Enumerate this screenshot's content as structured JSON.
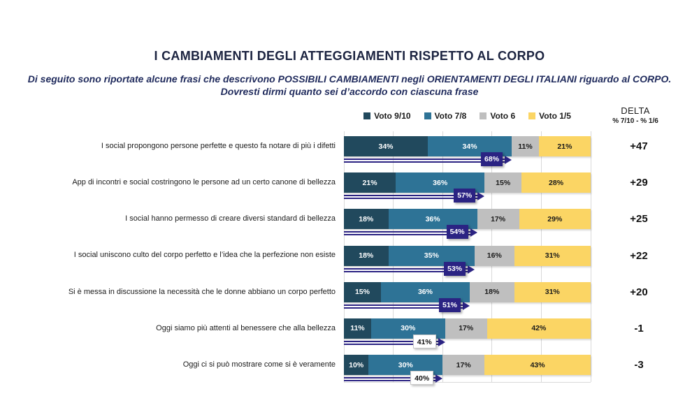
{
  "title": "I CAMBIAMENTI DEGLI ATTEGGIAMENTI RISPETTO AL CORPO",
  "subtitle_line1": "Di seguito sono riportate alcune frasi che descrivono POSSIBILI CAMBIAMENTI negli ORIENTAMENTI DEGLI ITALIANI riguardo al CORPO.",
  "subtitle_line2": "Dovresti dirmi quanto sei d’accordo con ciascuna frase",
  "colors": {
    "voto_9_10": "#21495d",
    "voto_7_8": "#2e7396",
    "voto_6": "#bfbfbf",
    "voto_1_5": "#fbd564",
    "arrow_navy": "#2b2383",
    "gridline": "#d9d9d9",
    "title_navy": "#1b2340"
  },
  "chart_data": {
    "type": "bar",
    "stacked": true,
    "orientation": "horizontal",
    "unit": "%",
    "xlim": [
      0,
      100
    ],
    "gridline_step_pct": 20,
    "legend_position": "top",
    "categories": [
      "I social propongono persone perfette e questo fa notare di più i difetti",
      "App di incontri e social costringono le persone ad un certo canone di bellezza",
      "I social hanno permesso di creare diversi standard di bellezza",
      "I social uniscono culto del corpo perfetto e l’idea che la perfezione non esiste",
      "Si è messa in discussione la necessità che le donne abbiano un corpo perfetto",
      "Oggi siamo più attenti al benessere che alla bellezza",
      "Oggi ci si può mostrare come si è veramente"
    ],
    "series": [
      {
        "name": "Voto 9/10",
        "color": "#21495d",
        "label_color": "#ffffff",
        "values": [
          34,
          21,
          18,
          18,
          15,
          11,
          10
        ]
      },
      {
        "name": "Voto 7/8",
        "color": "#2e7396",
        "label_color": "#ffffff",
        "values": [
          34,
          36,
          36,
          35,
          36,
          30,
          30
        ]
      },
      {
        "name": "Voto 6",
        "color": "#bfbfbf",
        "label_color": "#1a1a1a",
        "values": [
          11,
          15,
          17,
          16,
          18,
          17,
          17
        ]
      },
      {
        "name": "Voto 1/5",
        "color": "#fbd564",
        "label_color": "#1a1a1a",
        "values": [
          21,
          28,
          29,
          31,
          31,
          42,
          43
        ]
      }
    ],
    "top2_arrows": {
      "description": "somma Voto 9/10 + Voto 7/8",
      "color": "#2b2383",
      "values": [
        68,
        57,
        54,
        53,
        51,
        41,
        40
      ],
      "badge_styles": [
        "dark",
        "dark",
        "dark",
        "dark",
        "dark",
        "light",
        "light"
      ]
    },
    "delta": {
      "header": "DELTA",
      "formula": "% 7/10 - % 1/6",
      "values": [
        "+47",
        "+29",
        "+25",
        "+22",
        "+20",
        "-1",
        "-3"
      ]
    }
  }
}
